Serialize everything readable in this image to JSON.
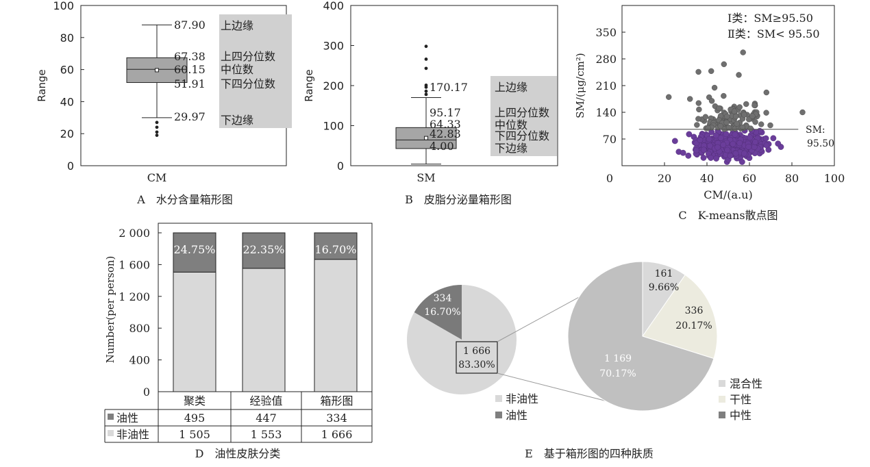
{
  "colors": {
    "dark": "#7f7f7f",
    "light": "#d9d9d9",
    "box": "#a6a6a6",
    "note": "#d0d0d0",
    "oil_pt": "#6f6f6f",
    "nonoil_pt": "#6a3d9a",
    "pie_main": "#c8c8c8",
    "mixed": "#d9d9d9",
    "dry": "#ecebdf",
    "neutral": "#c0c0c0"
  },
  "chart_data": [
    {
      "id": "A",
      "type": "box",
      "caption": "A　水分含量箱形图",
      "ylabel": "Range",
      "ylim": [
        0,
        100
      ],
      "yticks": [
        "0",
        "20",
        "40",
        "60",
        "80",
        "100"
      ],
      "category": "CM",
      "stats": {
        "upper_whisker": 87.9,
        "q3": 67.38,
        "median": 60.15,
        "q1": 51.91,
        "lower_whisker": 29.97
      },
      "outliers": [
        27,
        24,
        21,
        19
      ],
      "stat_labels": [
        "87.90",
        "67.38",
        "60.15",
        "51.91",
        "29.97"
      ],
      "annotations": [
        "上边缘",
        "上四分位数",
        "中位数",
        "下四分位数",
        "下边缘"
      ]
    },
    {
      "id": "B",
      "type": "box",
      "caption": "B　皮脂分泌量箱形图",
      "ylabel": "Range",
      "ylim": [
        0,
        400
      ],
      "yticks": [
        "0",
        "100",
        "200",
        "300",
        "400"
      ],
      "category": "SM",
      "stats": {
        "upper_whisker": 170.17,
        "q3": 95.17,
        "median": 64.33,
        "q1": 42.83,
        "lower_whisker": 4.0
      },
      "outliers": [
        178,
        186,
        196,
        201,
        243,
        266,
        298
      ],
      "stat_labels": [
        "170.17",
        "95.17",
        "64.33",
        "42.83",
        "4.00"
      ],
      "annotations": [
        "上边缘",
        "上四分位数",
        "中位数",
        "下四分位数",
        "下边缘"
      ]
    },
    {
      "id": "C",
      "type": "scatter",
      "caption": "C　K-means散点图",
      "xlabel": "CM/(a.u)",
      "ylabel": "SM/(μg/cm²)",
      "xlim": [
        0,
        100
      ],
      "ylim": [
        0,
        420
      ],
      "xticks": [
        "0",
        "20",
        "40",
        "60",
        "80",
        "100"
      ],
      "yticks": [
        "70",
        "140",
        "210",
        "280",
        "350"
      ],
      "threshold": 95.5,
      "threshold_label": [
        "SM:",
        "95.50"
      ],
      "legend_lines": [
        "Ⅰ类：SM≥95.50",
        "Ⅱ类：SM< 95.50"
      ]
    },
    {
      "id": "D",
      "type": "stacked_bar",
      "caption": "D　油性皮肤分类",
      "ylabel": "Number(per person)",
      "ylim": [
        0,
        2000
      ],
      "yticks": [
        "0",
        "400",
        "800",
        "1 200",
        "1 600",
        "2 000"
      ],
      "categories": [
        "聚类",
        "经验值",
        "箱形图"
      ],
      "series": [
        {
          "name": "油性",
          "values": [
            495,
            447,
            334
          ],
          "labels": [
            "495",
            "447",
            "334"
          ]
        },
        {
          "name": "非油性",
          "values": [
            1505,
            1553,
            1666
          ],
          "labels": [
            "1 505",
            "1 553",
            "1 666"
          ]
        }
      ],
      "bar_labels": [
        "24.75%",
        "22.35%",
        "16.70%"
      ]
    },
    {
      "id": "E",
      "type": "pie",
      "caption": "E　基于箱形图的四种肤质",
      "main": {
        "slices": [
          {
            "name": "非油性",
            "value": 1666,
            "labels": [
              "1 666",
              "83.30%"
            ]
          },
          {
            "name": "油性",
            "value": 334,
            "labels": [
              "334",
              "16.70%"
            ]
          }
        ]
      },
      "detail": {
        "slices": [
          {
            "name": "混合性",
            "value": 161,
            "labels": [
              "161",
              "9.66%"
            ]
          },
          {
            "name": "干性",
            "value": 336,
            "labels": [
              "336",
              "20.17%"
            ]
          },
          {
            "name": "中性",
            "value": 1169,
            "labels": [
              "1 169",
              "70.17%"
            ]
          }
        ]
      },
      "legend_main": [
        "非油性",
        "油性"
      ],
      "legend_detail": [
        "混合性",
        "干性",
        "中性"
      ]
    }
  ]
}
